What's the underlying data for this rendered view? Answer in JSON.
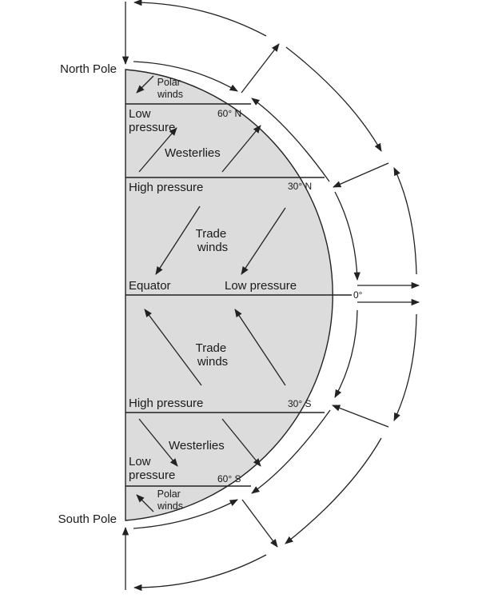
{
  "poles": {
    "north": "North Pole",
    "south": "South Pole"
  },
  "regions": {
    "polar_n": "Polar\nwinds",
    "low_n": "Low\npressure",
    "lat60n": "60° N",
    "westerlies_n": "Westerlies",
    "high_n": "High pressure",
    "lat30n": "30° N",
    "trade_n": "Trade\nwinds",
    "equator": "Equator",
    "low_eq": "Low pressure",
    "lat0": "0°",
    "trade_s": "Trade\nwinds",
    "high_s": "High pressure",
    "lat30s": "30° S",
    "westerlies_s": "Westerlies",
    "low_s": "Low\npressure",
    "lat60s": "60° S",
    "polar_s": "Polar\nwinds"
  },
  "colors": {
    "earth_fill": "#dcdcdc",
    "stroke": "#222222"
  }
}
